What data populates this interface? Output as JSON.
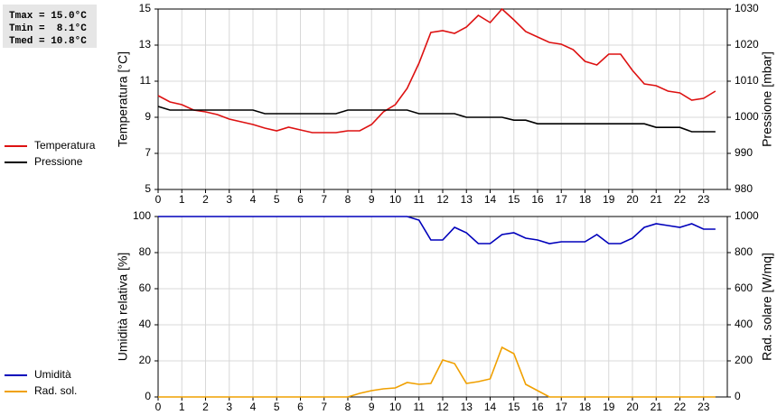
{
  "chart_data": [
    {
      "type": "line",
      "annotations": [
        "Tmax = 15.0°C",
        "Tmin =  8.1°C",
        "Tmed = 10.8°C"
      ],
      "ylabel": "Temperatura [°C]",
      "y2label": "Pressione [mbar]",
      "x": [
        0,
        0.5,
        1,
        1.5,
        2,
        2.5,
        3,
        3.5,
        4,
        4.5,
        5,
        5.5,
        6,
        6.5,
        7,
        7.5,
        8,
        8.5,
        9,
        9.5,
        10,
        10.5,
        11,
        11.5,
        12,
        12.5,
        13,
        13.5,
        14,
        14.5,
        15,
        15.5,
        16,
        16.5,
        17,
        17.5,
        18,
        18.5,
        19,
        19.5,
        20,
        20.5,
        21,
        21.5,
        22,
        22.5,
        23,
        23.5
      ],
      "xlim": [
        0,
        24
      ],
      "xticks": [
        0,
        1,
        2,
        3,
        4,
        5,
        6,
        7,
        8,
        9,
        10,
        11,
        12,
        13,
        14,
        15,
        16,
        17,
        18,
        19,
        20,
        21,
        22,
        23
      ],
      "ylim": [
        5,
        15
      ],
      "yticks": [
        5,
        7,
        9,
        11,
        13,
        15
      ],
      "y2lim": [
        980,
        1030
      ],
      "y2ticks": [
        980,
        990,
        1000,
        1010,
        1020,
        1030
      ],
      "grid": true,
      "series": [
        {
          "name": "Temperatura",
          "color": "#dd1111",
          "values": [
            10.2,
            9.85,
            9.7,
            9.4,
            9.3,
            9.15,
            8.9,
            8.75,
            8.6,
            8.4,
            8.25,
            8.45,
            8.3,
            8.15,
            8.15,
            8.15,
            8.25,
            8.25,
            8.6,
            9.3,
            9.7,
            10.6,
            12.0,
            13.7,
            13.8,
            13.65,
            14.0,
            14.65,
            14.25,
            15.0,
            14.4,
            13.75,
            13.45,
            13.15,
            13.05,
            12.75,
            12.1,
            11.9,
            12.5,
            12.5,
            11.6,
            10.85,
            10.75,
            10.45,
            10.35,
            9.95,
            10.05,
            10.45
          ]
        },
        {
          "name": "Pressione",
          "color": "#000000",
          "axis": "y2",
          "values": [
            1003,
            1002,
            1002,
            1002,
            1002,
            1002,
            1002,
            1002,
            1002,
            1001,
            1001,
            1001,
            1001,
            1001,
            1001,
            1001,
            1002,
            1002,
            1002,
            1002,
            1002,
            1002,
            1001,
            1001,
            1001,
            1001,
            1000,
            1000,
            1000,
            1000,
            999.2,
            999.2,
            998.2,
            998.2,
            998.2,
            998.2,
            998.2,
            998.2,
            998.2,
            998.2,
            998.2,
            998.2,
            997.2,
            997.2,
            997.2,
            996,
            996,
            996
          ]
        }
      ]
    },
    {
      "type": "line",
      "ylabel": "Umidità relativa [%]",
      "y2label": "Rad. solare [W/mq]",
      "x": [
        0,
        0.5,
        1,
        1.5,
        2,
        2.5,
        3,
        3.5,
        4,
        4.5,
        5,
        5.5,
        6,
        6.5,
        7,
        7.5,
        8,
        8.5,
        9,
        9.5,
        10,
        10.5,
        11,
        11.5,
        12,
        12.5,
        13,
        13.5,
        14,
        14.5,
        15,
        15.5,
        16,
        16.5,
        17,
        17.5,
        18,
        18.5,
        19,
        19.5,
        20,
        20.5,
        21,
        21.5,
        22,
        22.5,
        23,
        23.5
      ],
      "xlim": [
        0,
        24
      ],
      "xticks": [
        0,
        1,
        2,
        3,
        4,
        5,
        6,
        7,
        8,
        9,
        10,
        11,
        12,
        13,
        14,
        15,
        16,
        17,
        18,
        19,
        20,
        21,
        22,
        23
      ],
      "ylim": [
        0,
        100
      ],
      "yticks": [
        0,
        20,
        40,
        60,
        80,
        100
      ],
      "y2lim": [
        0,
        1000
      ],
      "y2ticks": [
        0,
        200,
        400,
        600,
        800,
        1000
      ],
      "grid": true,
      "series": [
        {
          "name": "Umidità",
          "color": "#0000bb",
          "values": [
            100,
            100,
            100,
            100,
            100,
            100,
            100,
            100,
            100,
            100,
            100,
            100,
            100,
            100,
            100,
            100,
            100,
            100,
            100,
            100,
            100,
            100,
            98,
            87,
            87,
            94,
            91,
            85,
            85,
            90,
            91,
            88,
            87,
            85,
            86,
            86,
            86,
            90,
            85,
            85,
            88,
            94,
            96,
            95,
            94,
            96,
            93,
            93
          ]
        },
        {
          "name": "Rad. sol.",
          "color": "#f0a000",
          "axis": "y2",
          "values": [
            0,
            0,
            0,
            0,
            0,
            0,
            0,
            0,
            0,
            0,
            0,
            0,
            0,
            0,
            0,
            0,
            0,
            20,
            35,
            45,
            50,
            80,
            70,
            75,
            205,
            185,
            75,
            85,
            100,
            275,
            240,
            70,
            35,
            0,
            0,
            0,
            0,
            0,
            0,
            0,
            0,
            0,
            0,
            0,
            0,
            0,
            0,
            0
          ]
        }
      ]
    }
  ]
}
